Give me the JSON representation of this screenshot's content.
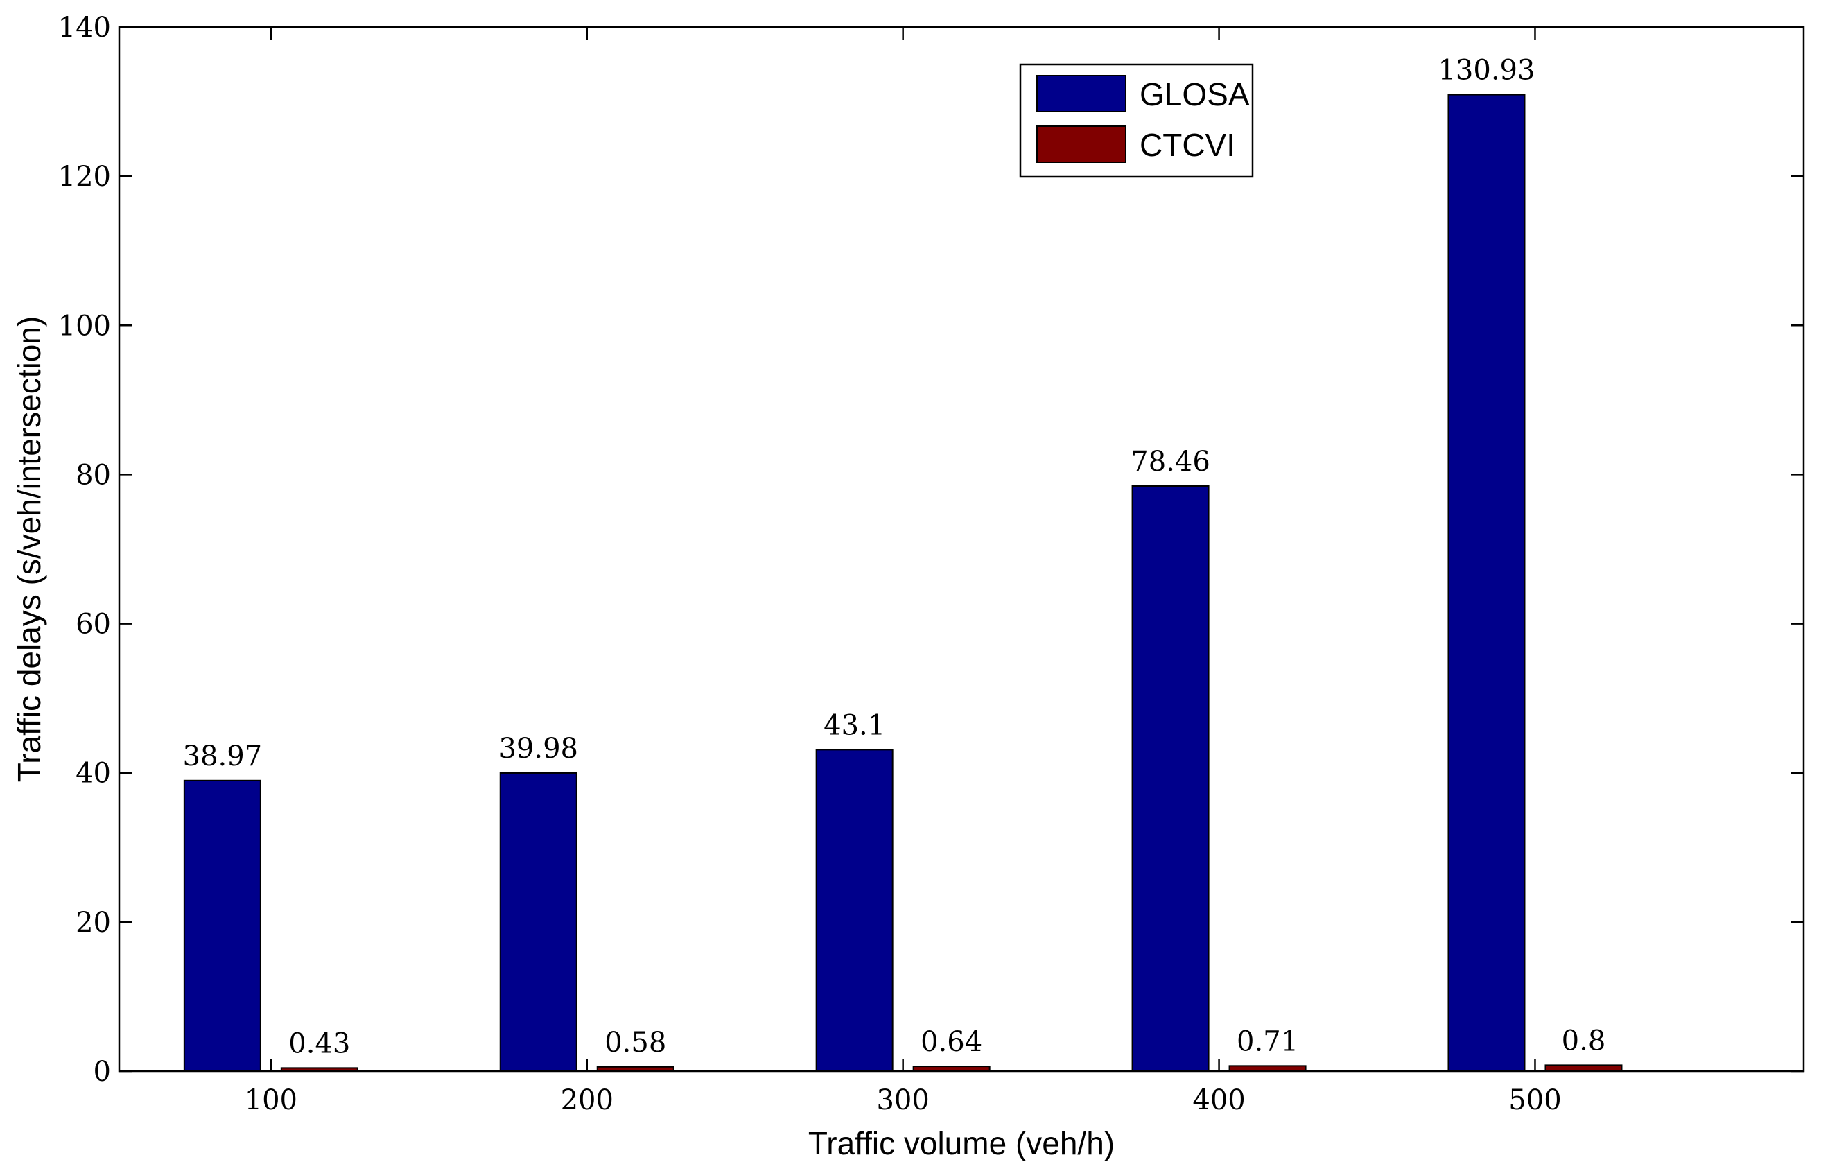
{
  "chart_data": {
    "type": "bar",
    "title": "",
    "xlabel": "Traffic volume (veh/h)",
    "ylabel": "Traffic delays (s/veh/intersection)",
    "categories": [
      "100",
      "200",
      "300",
      "400",
      "500"
    ],
    "ylim": [
      0,
      140
    ],
    "yticks": [
      0,
      20,
      40,
      60,
      80,
      100,
      120,
      140
    ],
    "series": [
      {
        "name": "GLOSA",
        "color": "#00008B",
        "values": [
          38.97,
          39.98,
          43.1,
          78.46,
          130.93
        ],
        "labels": [
          "38.97",
          "39.98",
          "43.1",
          "78.46",
          "130.93"
        ]
      },
      {
        "name": "CTCVI",
        "color": "#800000",
        "values": [
          0.43,
          0.58,
          0.64,
          0.71,
          0.8
        ],
        "labels": [
          "0.43",
          "0.58",
          "0.64",
          "0.71",
          "0.8"
        ]
      }
    ],
    "legend_position": "top-center",
    "grid": false
  }
}
